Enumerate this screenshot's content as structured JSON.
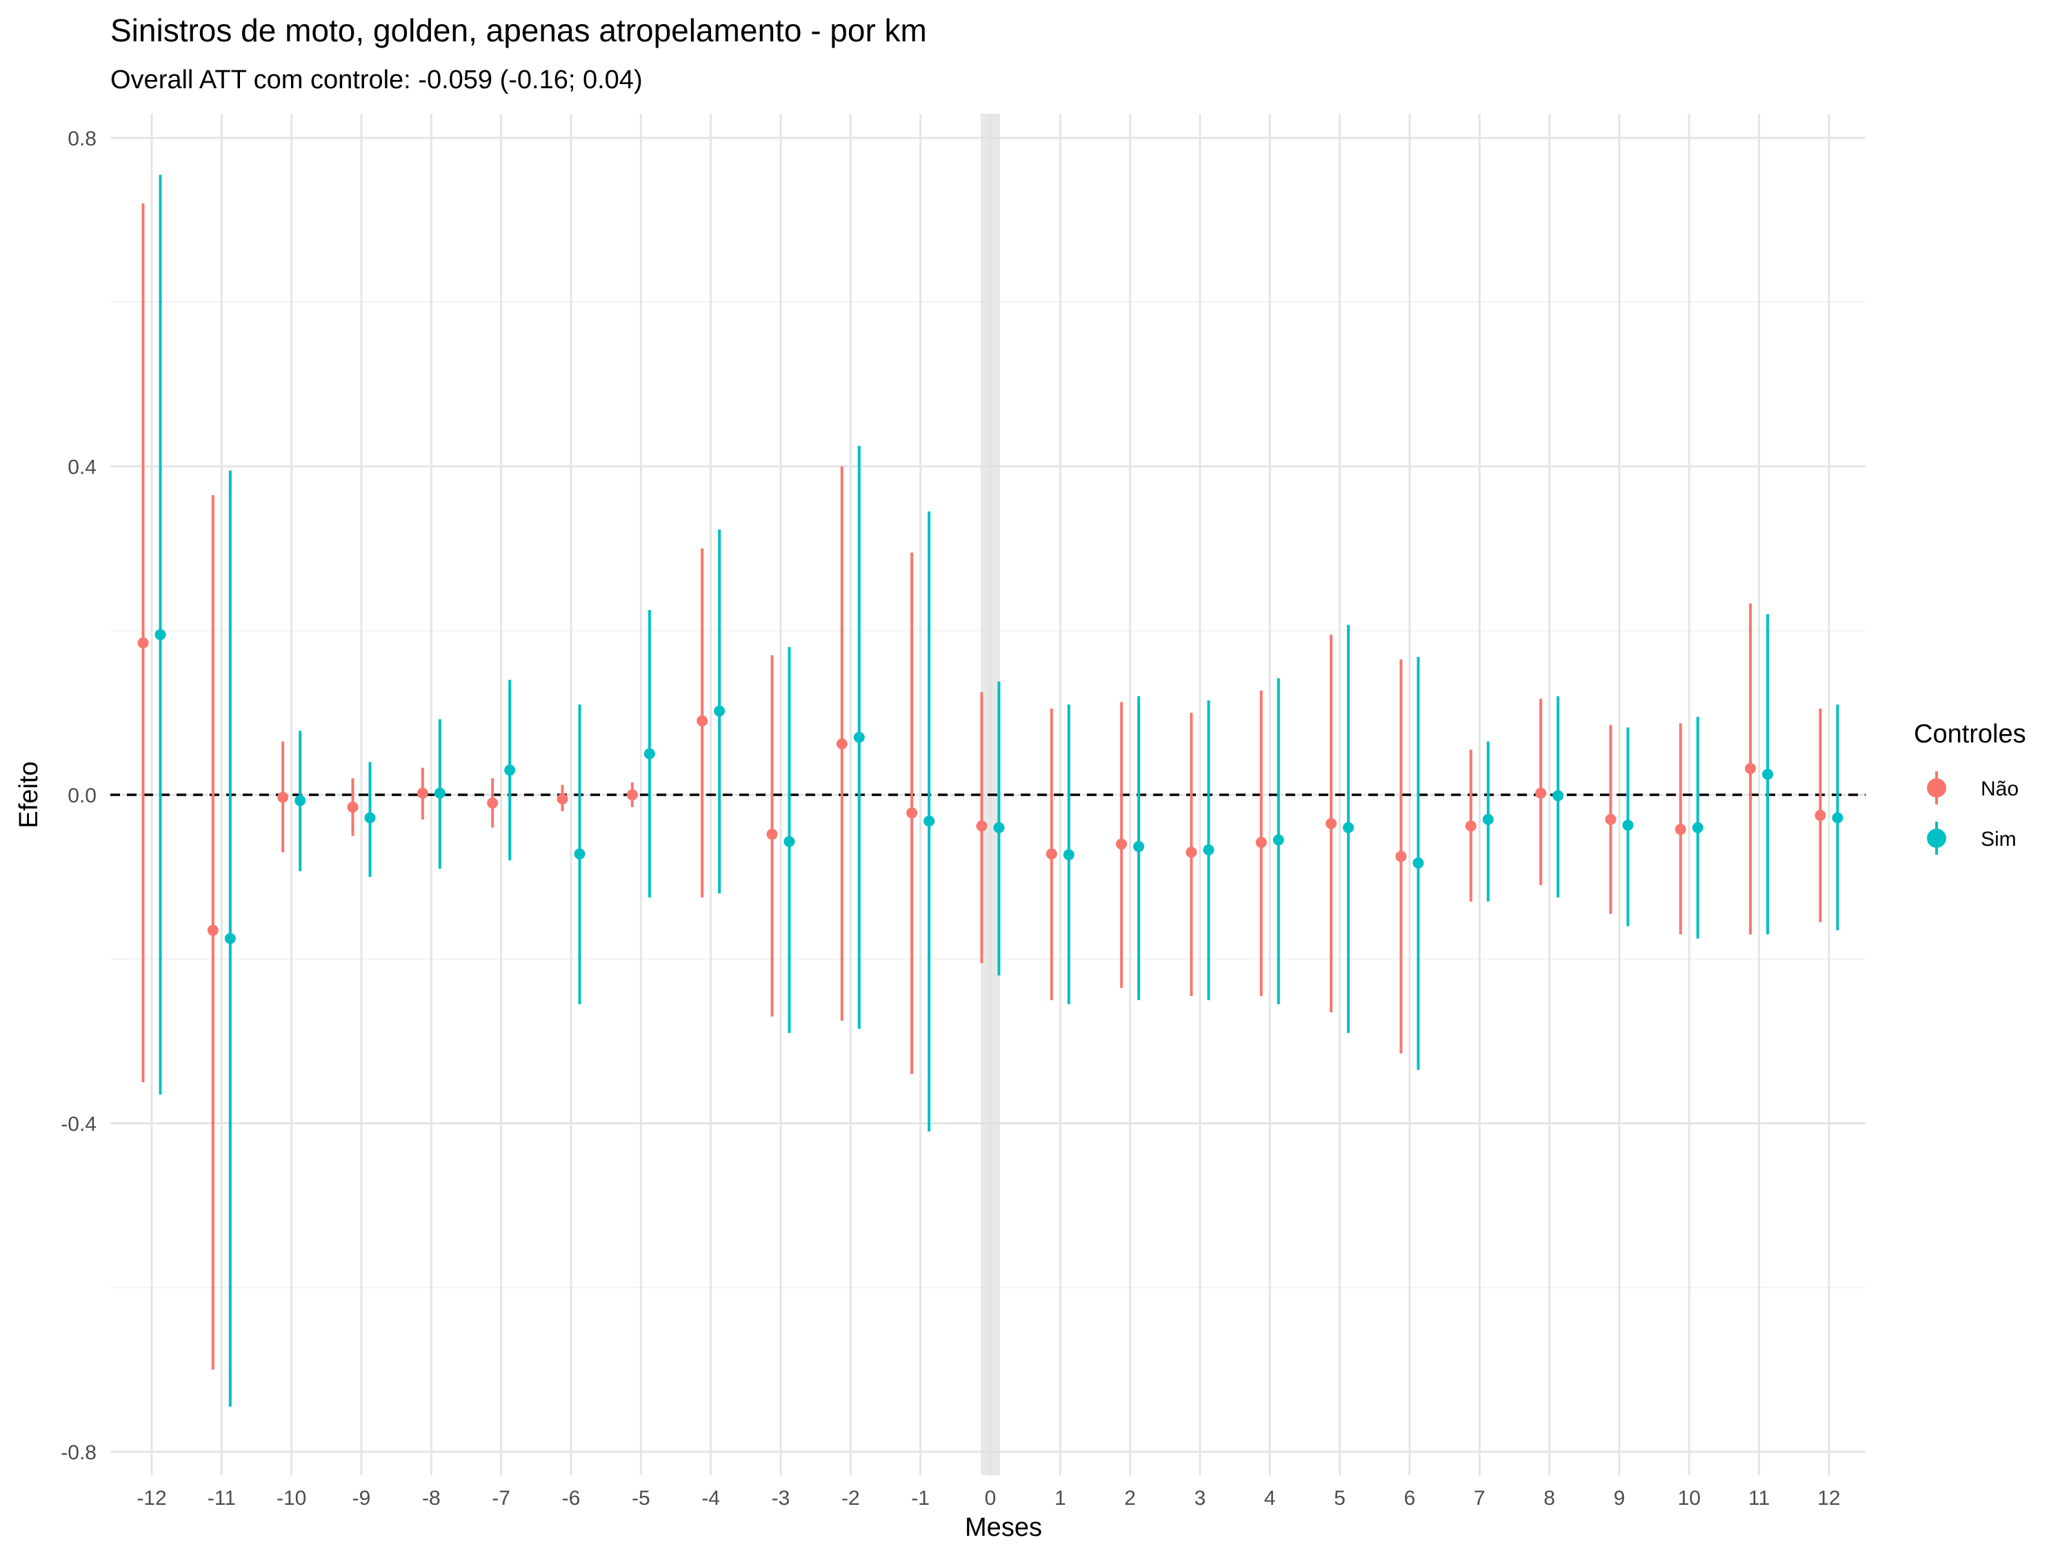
{
  "chart_data": {
    "type": "scatter",
    "subtype": "point-range event study",
    "title": "Sinistros de moto, golden, apenas atropelamento - por km",
    "subtitle": "Overall ATT com controle: -0.059 (-0.16; 0.04)",
    "xlabel": "Meses",
    "ylabel": "Efeito",
    "ylim": [
      -0.8,
      0.8
    ],
    "yticks": [
      -0.8,
      -0.4,
      0.0,
      0.4,
      0.8
    ],
    "ytick_labels": [
      "-0.8",
      "-0.4",
      "0.0",
      "0.4",
      "0.8"
    ],
    "x": [
      -12,
      -11,
      -10,
      -9,
      -8,
      -7,
      -6,
      -5,
      -4,
      -3,
      -2,
      -1,
      0,
      1,
      2,
      3,
      4,
      5,
      6,
      7,
      8,
      9,
      10,
      11,
      12
    ],
    "xtick_labels": [
      "-12",
      "-11",
      "-10",
      "-9",
      "-8",
      "-7",
      "-6",
      "-5",
      "-4",
      "-3",
      "-2",
      "-1",
      "0",
      "1",
      "2",
      "3",
      "4",
      "5",
      "6",
      "7",
      "8",
      "9",
      "10",
      "11",
      "12"
    ],
    "reference_line": {
      "y": 0,
      "style": "dashed",
      "color": "#000000"
    },
    "highlight_x": 0,
    "grid": true,
    "legend": {
      "title": "Controles",
      "position": "right"
    },
    "series": [
      {
        "name": "Não",
        "color": "#F8766D",
        "estimate": [
          0.185,
          -0.165,
          -0.003,
          -0.015,
          0.002,
          -0.01,
          -0.005,
          0.0,
          0.09,
          -0.048,
          0.062,
          -0.022,
          -0.038,
          -0.072,
          -0.06,
          -0.07,
          -0.058,
          -0.035,
          -0.075,
          -0.038,
          0.002,
          -0.03,
          -0.042,
          0.032,
          -0.025
        ],
        "lower": [
          -0.35,
          -0.7,
          -0.07,
          -0.05,
          -0.03,
          -0.04,
          -0.02,
          -0.015,
          -0.125,
          -0.27,
          -0.275,
          -0.34,
          -0.205,
          -0.25,
          -0.235,
          -0.245,
          -0.245,
          -0.265,
          -0.315,
          -0.13,
          -0.11,
          -0.145,
          -0.17,
          -0.17,
          -0.155
        ],
        "upper": [
          0.72,
          0.365,
          0.065,
          0.02,
          0.033,
          0.02,
          0.012,
          0.015,
          0.3,
          0.17,
          0.4,
          0.295,
          0.125,
          0.105,
          0.113,
          0.1,
          0.127,
          0.195,
          0.165,
          0.055,
          0.117,
          0.085,
          0.087,
          0.233,
          0.105
        ]
      },
      {
        "name": "Sim",
        "color": "#00BFC4",
        "estimate": [
          0.195,
          -0.175,
          -0.007,
          -0.028,
          0.002,
          0.03,
          -0.072,
          0.05,
          0.102,
          -0.057,
          0.07,
          -0.032,
          -0.04,
          -0.073,
          -0.063,
          -0.067,
          -0.055,
          -0.04,
          -0.083,
          -0.03,
          -0.001,
          -0.037,
          -0.04,
          0.025,
          -0.028
        ],
        "lower": [
          -0.365,
          -0.745,
          -0.093,
          -0.1,
          -0.09,
          -0.08,
          -0.255,
          -0.125,
          -0.12,
          -0.29,
          -0.285,
          -0.41,
          -0.22,
          -0.255,
          -0.25,
          -0.25,
          -0.255,
          -0.29,
          -0.335,
          -0.13,
          -0.125,
          -0.16,
          -0.175,
          -0.17,
          -0.165
        ],
        "upper": [
          0.755,
          0.395,
          0.078,
          0.04,
          0.092,
          0.14,
          0.11,
          0.225,
          0.323,
          0.18,
          0.425,
          0.345,
          0.138,
          0.11,
          0.12,
          0.115,
          0.142,
          0.207,
          0.168,
          0.065,
          0.12,
          0.082,
          0.095,
          0.22,
          0.11
        ]
      }
    ]
  }
}
